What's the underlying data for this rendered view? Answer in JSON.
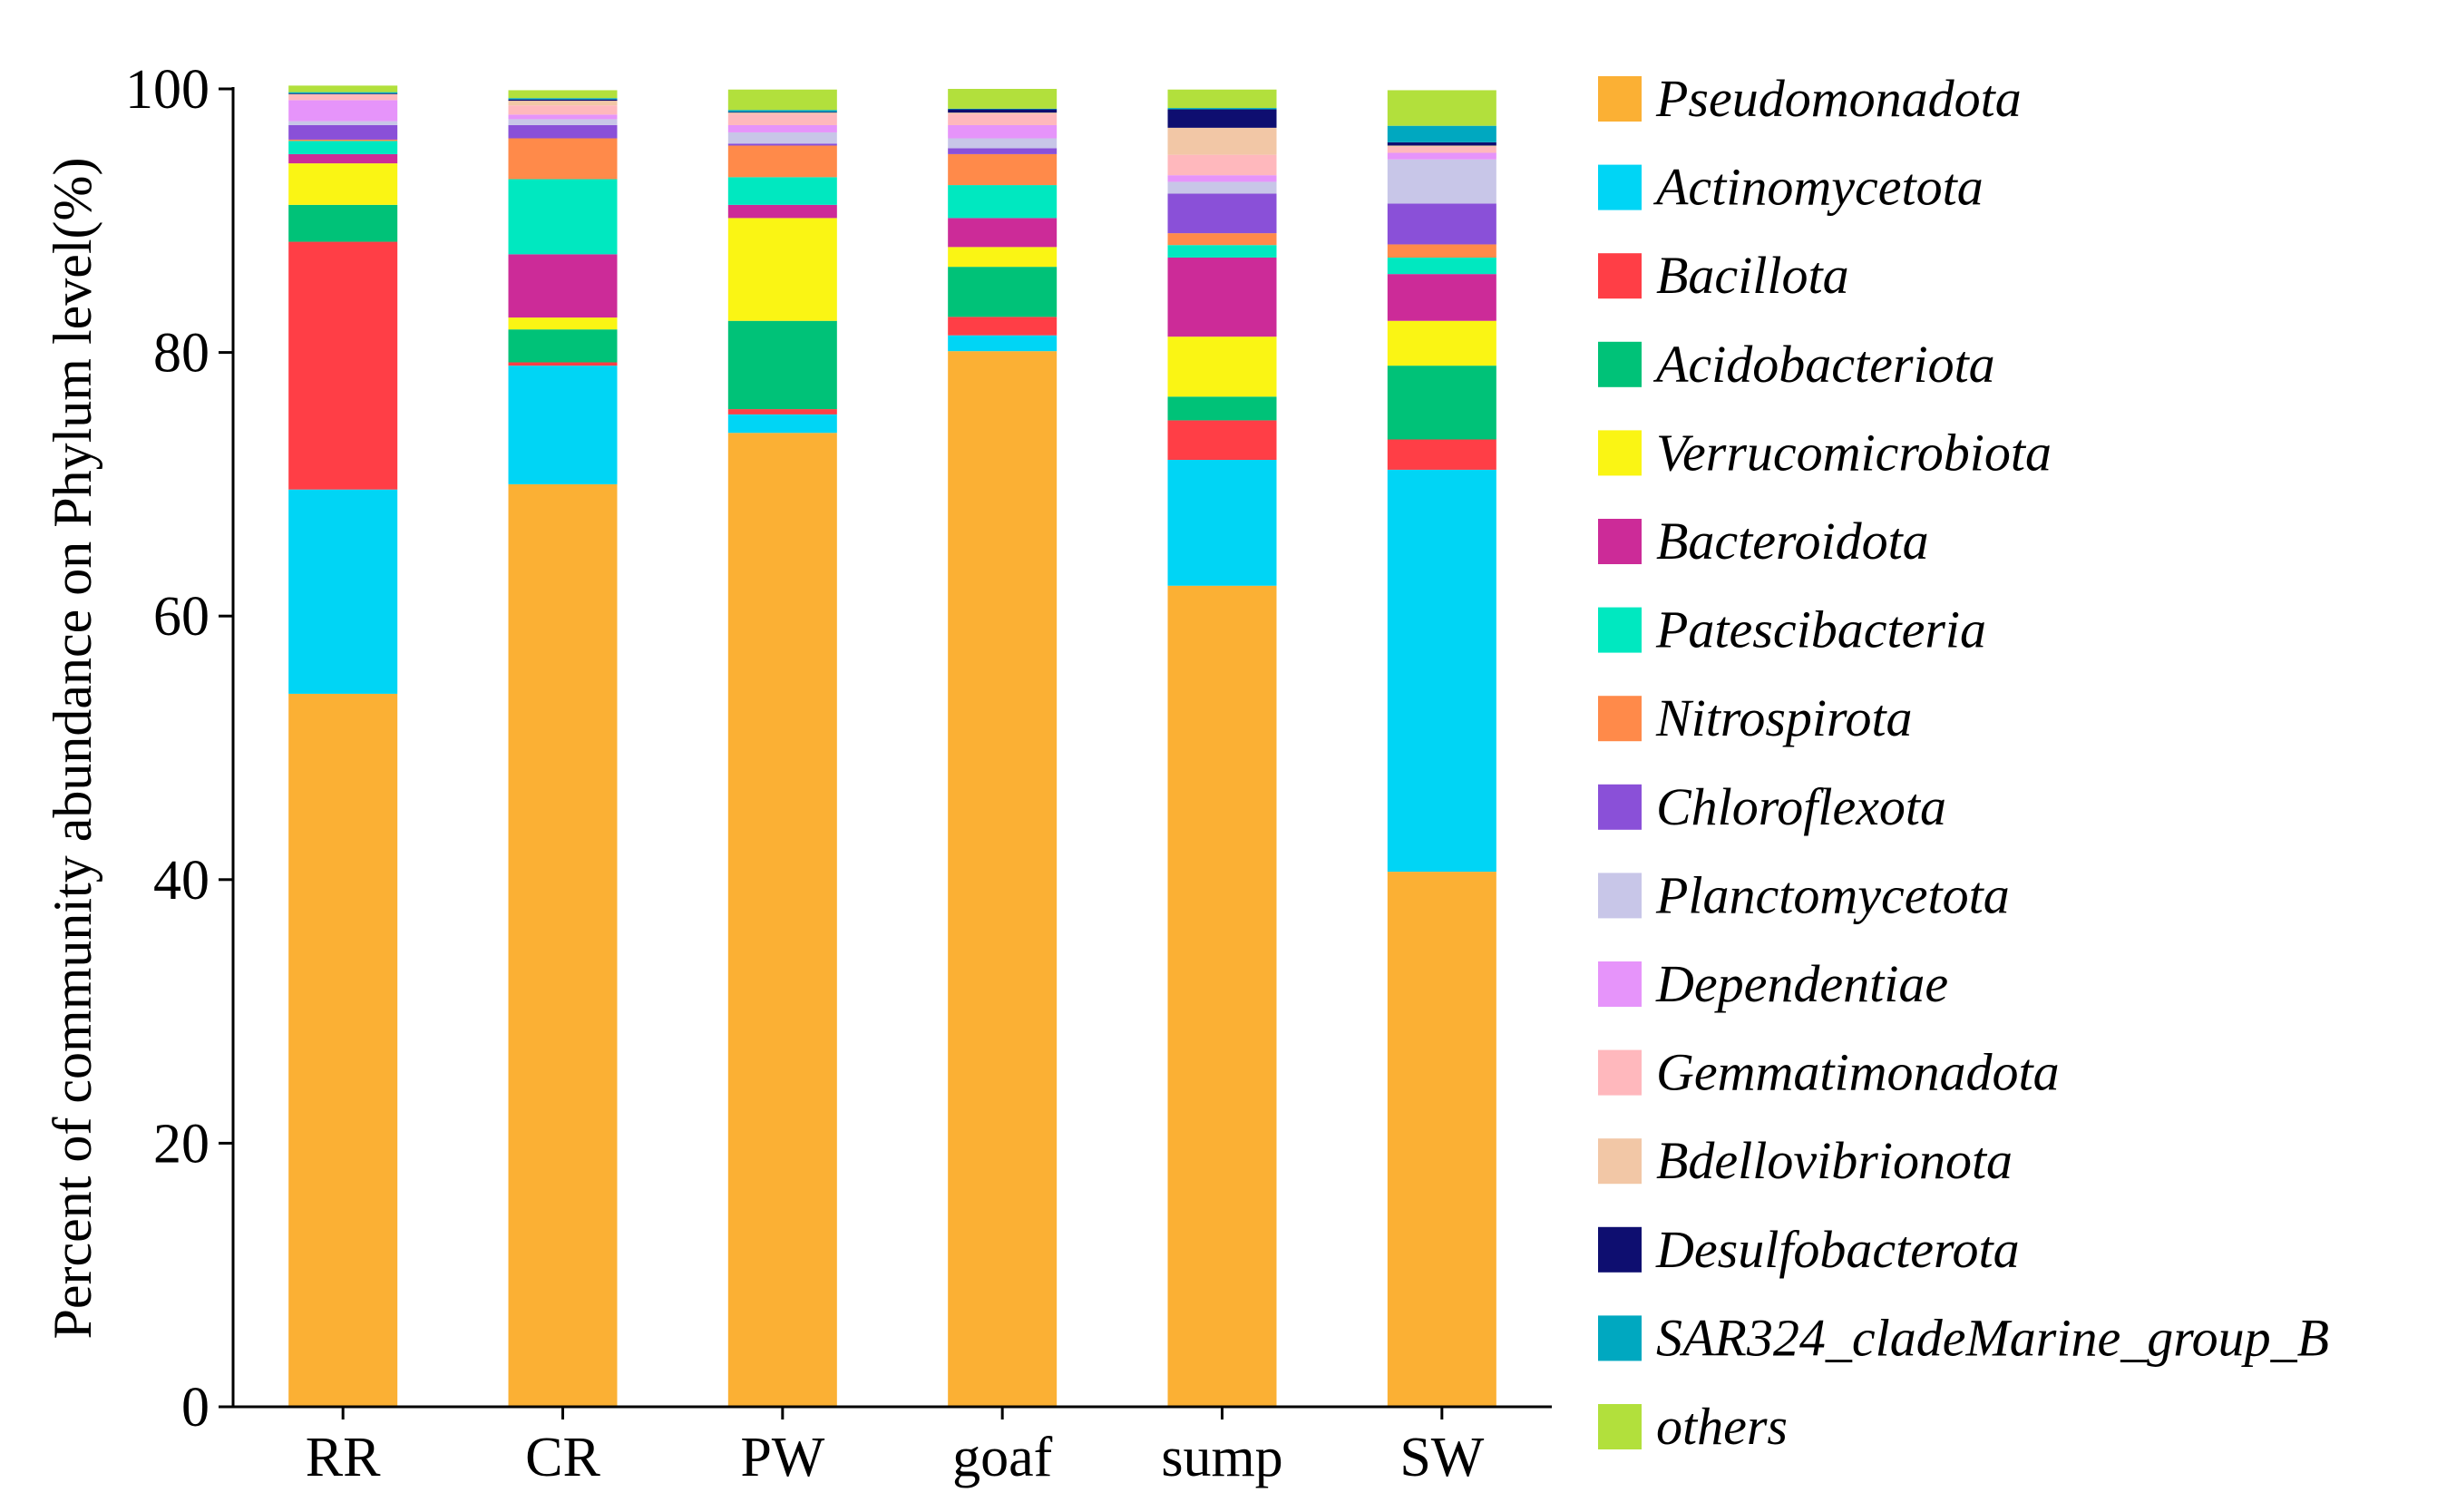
{
  "chart_data": {
    "type": "bar",
    "stacked": true,
    "title": "",
    "xlabel": "",
    "ylabel": "Percent of community abundance on Phylum level(%)",
    "ylim": [
      0,
      100
    ],
    "yticks": [
      0,
      20,
      40,
      60,
      80,
      100
    ],
    "grid": false,
    "legend_position": "right",
    "categories": [
      "RR",
      "CR",
      "PW",
      "goaf",
      "sump",
      "SW"
    ],
    "series": [
      {
        "name": "Pseudomonadota",
        "color": "#FBB034",
        "values": [
          54.1,
          70.0,
          73.9,
          80.1,
          62.3,
          40.6
        ]
      },
      {
        "name": "Actinomycetota",
        "color": "#00D5F5",
        "values": [
          15.5,
          9.0,
          1.4,
          1.2,
          9.55,
          30.5
        ]
      },
      {
        "name": "Bacillota",
        "color": "#FF3E46",
        "values": [
          18.8,
          0.25,
          0.4,
          1.4,
          3.0,
          2.3
        ]
      },
      {
        "name": "Acidobacteriota",
        "color": "#00C278",
        "values": [
          2.8,
          2.5,
          6.7,
          3.8,
          1.8,
          5.6
        ]
      },
      {
        "name": "Verrucomicrobiota",
        "color": "#FAF514",
        "values": [
          3.15,
          0.9,
          7.8,
          1.5,
          4.55,
          3.4
        ]
      },
      {
        "name": "Bacteroidota",
        "color": "#CC2B98",
        "values": [
          0.7,
          4.8,
          1.0,
          2.2,
          6.0,
          3.55
        ]
      },
      {
        "name": "Patescibacteria",
        "color": "#00E8C0",
        "values": [
          1.0,
          5.7,
          2.1,
          2.5,
          0.95,
          1.25
        ]
      },
      {
        "name": "Nitrospirota",
        "color": "#FF8A4A",
        "values": [
          0.1,
          3.1,
          2.4,
          2.35,
          0.9,
          1.0
        ]
      },
      {
        "name": "Chloroflexota",
        "color": "#8A50D8",
        "values": [
          1.1,
          1.0,
          0.15,
          0.45,
          3.0,
          3.1
        ]
      },
      {
        "name": "Planctomycetota",
        "color": "#C8C6E8",
        "values": [
          0.3,
          0.45,
          0.85,
          0.75,
          0.9,
          3.35
        ]
      },
      {
        "name": "Dependentiae",
        "color": "#E694FA",
        "values": [
          1.6,
          0.35,
          0.55,
          1.0,
          0.5,
          0.5
        ]
      },
      {
        "name": "Gemmatimonadota",
        "color": "#FFB8BD",
        "values": [
          0.4,
          0.7,
          0.85,
          0.85,
          1.55,
          0.45
        ]
      },
      {
        "name": "Bdellovibrionota",
        "color": "#F2C7A6",
        "values": [
          0.05,
          0.35,
          0.1,
          0.1,
          2.05,
          0.1
        ]
      },
      {
        "name": "Desulfobacterota",
        "color": "#0E0E70",
        "values": [
          0.05,
          0.1,
          0.05,
          0.25,
          1.4,
          0.25
        ]
      },
      {
        "name": "SAR324_cladeMarine_group_B",
        "color": "#00A8C0",
        "values": [
          0.1,
          0.1,
          0.15,
          0.05,
          0.1,
          1.25
        ]
      },
      {
        "name": "others",
        "color": "#B2E03C",
        "values": [
          0.5,
          0.6,
          1.55,
          1.5,
          1.4,
          2.7
        ]
      }
    ]
  }
}
